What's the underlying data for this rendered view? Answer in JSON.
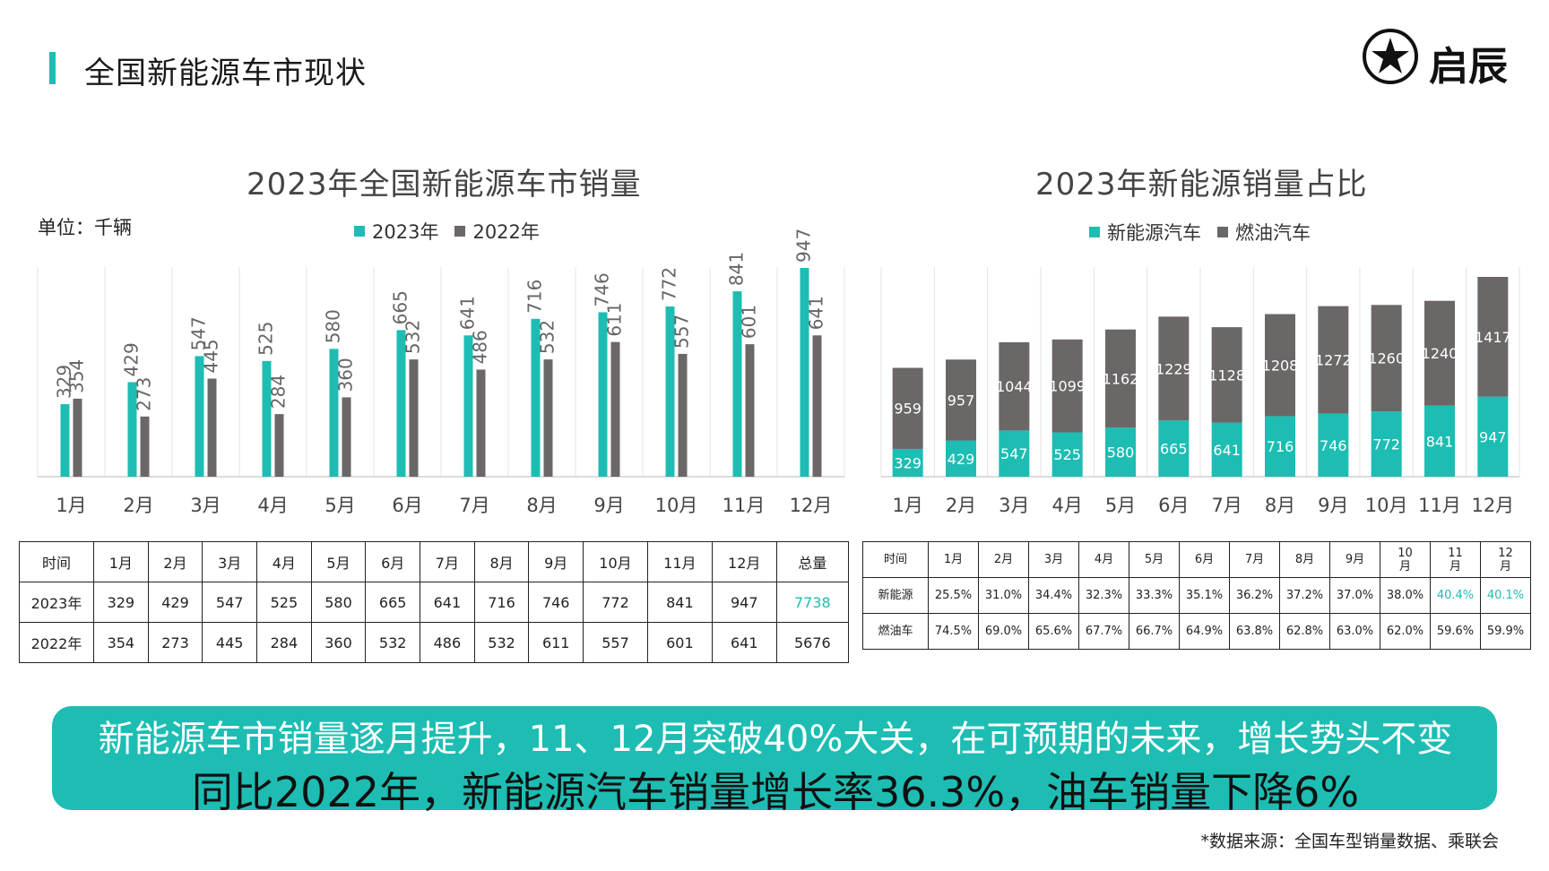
{
  "page": {
    "title": "全国新能源车市现状",
    "logo_text": "启辰",
    "source": "*数据来源：全国车型销量数据、乘联会"
  },
  "colors": {
    "teal": "#1dbdb3",
    "gray": "#6b6767",
    "grid": "#e3e3e3"
  },
  "chart1": {
    "title": "2023年全国新能源车市销量",
    "unit": "单位：千辆",
    "legend": [
      "2023年",
      "2022年"
    ]
  },
  "chart2": {
    "title": "2023年新能源销量占比",
    "legend": [
      "新能源汽车",
      "燃油汽车"
    ]
  },
  "chart_data": [
    {
      "type": "bar",
      "title": "2023年全国新能源车市销量",
      "ylabel": "单位：千辆",
      "categories": [
        "1月",
        "2月",
        "3月",
        "4月",
        "5月",
        "6月",
        "7月",
        "8月",
        "9月",
        "10月",
        "11月",
        "12月"
      ],
      "series": [
        {
          "name": "2023年",
          "values": [
            329,
            429,
            547,
            525,
            580,
            665,
            641,
            716,
            746,
            772,
            841,
            947
          ]
        },
        {
          "name": "2022年",
          "values": [
            354,
            273,
            445,
            284,
            360,
            532,
            486,
            532,
            611,
            557,
            601,
            641
          ]
        }
      ],
      "legend": "top",
      "grid": true
    },
    {
      "type": "bar",
      "stacked": true,
      "title": "2023年新能源销量占比",
      "categories": [
        "1月",
        "2月",
        "3月",
        "4月",
        "5月",
        "6月",
        "7月",
        "8月",
        "9月",
        "10月",
        "11月",
        "12月"
      ],
      "series": [
        {
          "name": "新能源汽车",
          "values": [
            329,
            429,
            547,
            525,
            580,
            665,
            641,
            716,
            746,
            772,
            841,
            947
          ]
        },
        {
          "name": "燃油汽车",
          "values": [
            959,
            957,
            1044,
            1099,
            1162,
            1229,
            1128,
            1208,
            1272,
            1260,
            1240,
            1417
          ]
        }
      ],
      "legend": "top",
      "grid": true
    }
  ],
  "table1": {
    "headers": [
      "时间",
      "1月",
      "2月",
      "3月",
      "4月",
      "5月",
      "6月",
      "7月",
      "8月",
      "9月",
      "10月",
      "11月",
      "12月",
      "总量"
    ],
    "rows": [
      [
        "2023年",
        "329",
        "429",
        "547",
        "525",
        "580",
        "665",
        "641",
        "716",
        "746",
        "772",
        "841",
        "947",
        "7738"
      ],
      [
        "2022年",
        "354",
        "273",
        "445",
        "284",
        "360",
        "532",
        "486",
        "532",
        "611",
        "557",
        "601",
        "641",
        "5676"
      ]
    ]
  },
  "table2": {
    "headers": [
      "时间",
      "1月",
      "2月",
      "3月",
      "4月",
      "5月",
      "6月",
      "7月",
      "8月",
      "9月",
      "10月",
      "11月",
      "12月"
    ],
    "rows": [
      [
        "新能源",
        "25.5%",
        "31.0%",
        "34.4%",
        "32.3%",
        "33.3%",
        "35.1%",
        "36.2%",
        "37.2%",
        "37.0%",
        "38.0%",
        "40.4%",
        "40.1%"
      ],
      [
        "燃油车",
        "74.5%",
        "69.0%",
        "65.6%",
        "67.7%",
        "66.7%",
        "64.9%",
        "63.8%",
        "62.8%",
        "63.0%",
        "62.0%",
        "59.6%",
        "59.9%"
      ]
    ]
  },
  "banner": {
    "line1": "新能源车市销量逐月提升，11、12月突破40%大关，在可预期的未来，增长势头不变",
    "line2": "同比2022年，新能源汽车销量增长率36.3%，油车销量下降6%"
  }
}
